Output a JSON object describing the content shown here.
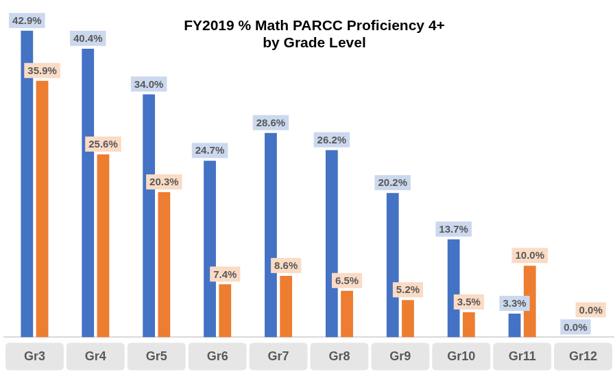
{
  "chart_data": {
    "type": "bar",
    "title": [
      "FY2019 % Math PARCC Proficiency 4+",
      "by Grade Level"
    ],
    "categories": [
      "Gr3",
      "Gr4",
      "Gr5",
      "Gr6",
      "Gr7",
      "Gr8",
      "Gr9",
      "Gr10",
      "Gr11",
      "Gr12"
    ],
    "series": [
      {
        "color": "#4472c4",
        "values": [
          42.9,
          40.4,
          34.0,
          24.7,
          28.6,
          26.2,
          20.2,
          13.7,
          3.3,
          0.0
        ],
        "value_labels": [
          "42.9%",
          "40.4%",
          "34.0%",
          "24.7%",
          "28.6%",
          "26.2%",
          "20.2%",
          "13.7%",
          "3.3%",
          "0.0%"
        ]
      },
      {
        "color": "#ed7d31",
        "values": [
          35.9,
          25.6,
          20.3,
          7.4,
          8.6,
          6.5,
          5.2,
          3.5,
          10.0,
          0.0
        ],
        "value_labels": [
          "35.9%",
          "25.6%",
          "20.3%",
          "7.4%",
          "8.6%",
          "6.5%",
          "5.2%",
          "3.5%",
          "10.0%",
          "0.0%"
        ]
      }
    ],
    "ylim": [
      0,
      45
    ],
    "grid": false,
    "data_labels": true,
    "tick_labels": "x"
  }
}
